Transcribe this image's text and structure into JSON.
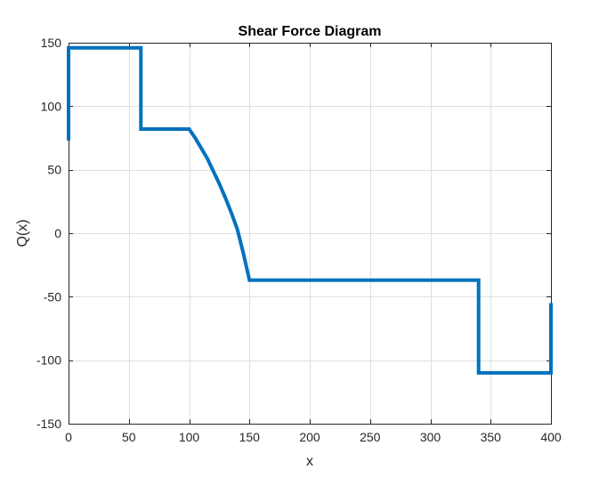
{
  "chart_data": {
    "type": "line",
    "title": "Shear Force Diagram",
    "xlabel": "x",
    "ylabel": "Q(x)",
    "xlim": [
      0,
      400
    ],
    "ylim": [
      -150,
      150
    ],
    "xticks": [
      0,
      50,
      100,
      150,
      200,
      250,
      300,
      350,
      400
    ],
    "yticks": [
      -150,
      -100,
      -50,
      0,
      50,
      100,
      150
    ],
    "grid": true,
    "line_color": "#0072BD",
    "series": [
      {
        "x": [
          0,
          0,
          60,
          60,
          100,
          105,
          110,
          115,
          120,
          125,
          130,
          135,
          140,
          145,
          150,
          340,
          340,
          400,
          400
        ],
        "y": [
          73,
          146,
          146,
          82,
          82,
          75,
          67,
          59,
          49,
          39,
          28,
          16,
          3,
          -16,
          -37,
          -37,
          -110,
          -110,
          -55
        ]
      }
    ]
  }
}
